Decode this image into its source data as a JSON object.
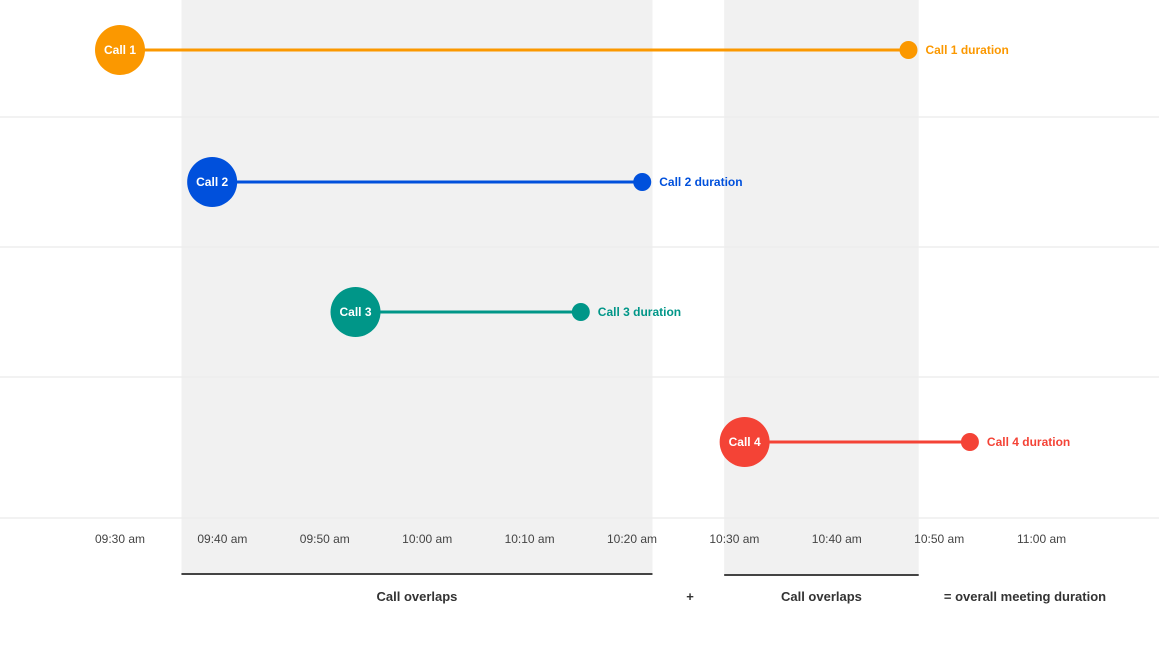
{
  "chart_data": {
    "type": "timeline",
    "x_ticks": [
      "09:30 am",
      "09:40 am",
      "09:50 am",
      "10:00 am",
      "10:10 am",
      "10:20 am",
      "10:30 am",
      "10:40 am",
      "10:50 am",
      "11:00 am"
    ],
    "calls": [
      {
        "name": "Call 1",
        "duration_label": "Call 1 duration",
        "start": "09:30",
        "end": "10:47",
        "color": "#FB9800"
      },
      {
        "name": "Call 2",
        "duration_label": "Call 2 duration",
        "start": "09:39",
        "end": "10:21",
        "color": "#0050DC"
      },
      {
        "name": "Call 3",
        "duration_label": "Call 3 duration",
        "start": "09:53",
        "end": "10:15",
        "color": "#009688"
      },
      {
        "name": "Call 4",
        "duration_label": "Call 4 duration",
        "start": "10:31",
        "end": "10:53",
        "color": "#F44336"
      }
    ],
    "overlap_regions": [
      {
        "label": "Call overlaps",
        "start": "09:36",
        "end": "10:22"
      },
      {
        "label": "Call overlaps",
        "start": "10:29",
        "end": "10:48"
      }
    ],
    "plus_label": "+",
    "total_label": "= overall meeting duration"
  }
}
